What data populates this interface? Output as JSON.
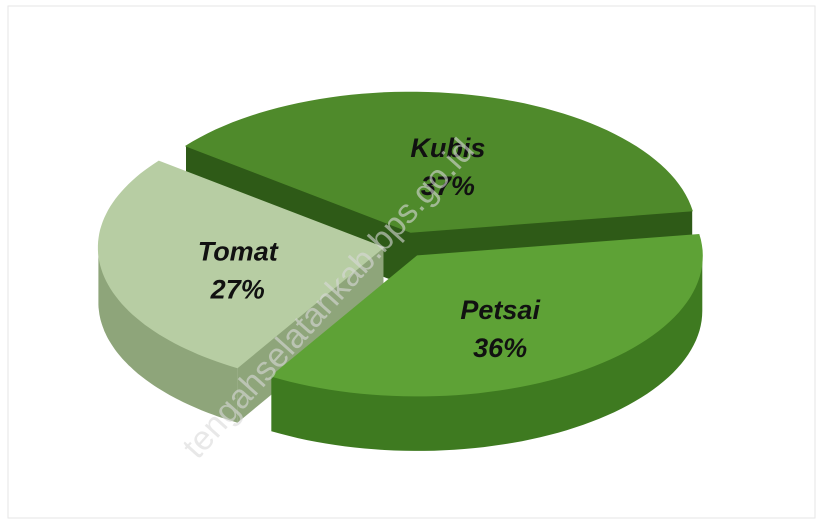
{
  "chart_data": {
    "type": "pie3d",
    "categories": [
      "Kubis",
      "Petsai",
      "Tomat"
    ],
    "values": [
      37,
      36,
      27
    ],
    "value_labels": [
      "37%",
      "36%",
      "27%"
    ],
    "colors": [
      "#4f8a2b",
      "#5ea236",
      "#b7cda3"
    ],
    "side_colors": [
      "#2e5a17",
      "#3e7a20",
      "#8ea57a"
    ],
    "watermark": "tengahselatankab.bps.go.id"
  }
}
